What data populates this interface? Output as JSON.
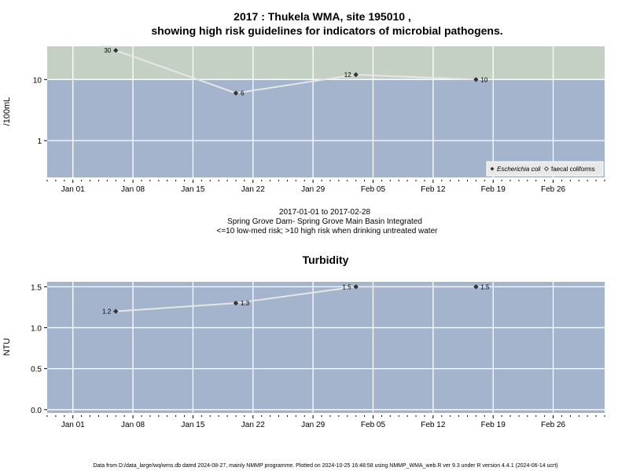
{
  "colors": {
    "plot_bg": "#a3b4cc",
    "high_risk_bg": "#c4d0c4",
    "grid": "#ffffff",
    "line": "#e6e6e6",
    "marker": "#333333"
  },
  "chart_data": [
    {
      "type": "line",
      "title_line1": "2017 : Thukela WMA, site 195010 ,",
      "title_line2": "showing high risk guidelines for indicators of microbial pathogens.",
      "ylabel": "/100mL",
      "yscale": "log",
      "ylim": [
        0.25,
        35
      ],
      "yticks": [
        {
          "value": 1,
          "label": "1"
        },
        {
          "value": 10,
          "label": "10"
        }
      ],
      "high_risk_threshold": 10,
      "xlim": [
        "2016-12-29",
        "2017-03-04"
      ],
      "xticks": [
        "Jan 01",
        "Jan 08",
        "Jan 15",
        "Jan 22",
        "Jan 29",
        "Feb 05",
        "Feb 12",
        "Feb 19",
        "Feb 26"
      ],
      "xtick_dates": [
        "2017-01-01",
        "2017-01-08",
        "2017-01-15",
        "2017-01-22",
        "2017-01-29",
        "2017-02-05",
        "2017-02-12",
        "2017-02-19",
        "2017-02-26"
      ],
      "series": [
        {
          "name": "Escherichia coli",
          "x": [
            "2017-01-06",
            "2017-01-20",
            "2017-02-03",
            "2017-02-17"
          ],
          "y": [
            30,
            6,
            12,
            10
          ],
          "labels": [
            "30",
            "6",
            "12",
            "10"
          ]
        }
      ],
      "legend": {
        "position": "bottom-right",
        "entries": [
          "Escherichia coli",
          "faecal coliforms"
        ]
      },
      "caption_lines": [
        "2017-01-01 to 2017-02-28",
        "Spring Grove Dam- Spring Grove Main Basin Integrated",
        "<=10 low-med risk; >10 high risk when drinking untreated water"
      ]
    },
    {
      "type": "line",
      "title": "Turbidity",
      "ylabel": "NTU",
      "ylim": [
        -0.04,
        1.56
      ],
      "yticks": [
        {
          "value": 0.0,
          "label": "0.0"
        },
        {
          "value": 0.5,
          "label": "0.5"
        },
        {
          "value": 1.0,
          "label": "1.0"
        },
        {
          "value": 1.5,
          "label": "1.5"
        }
      ],
      "xlim": [
        "2016-12-29",
        "2017-03-04"
      ],
      "xticks": [
        "Jan 01",
        "Jan 08",
        "Jan 15",
        "Jan 22",
        "Jan 29",
        "Feb 05",
        "Feb 12",
        "Feb 19",
        "Feb 26"
      ],
      "xtick_dates": [
        "2017-01-01",
        "2017-01-08",
        "2017-01-15",
        "2017-01-22",
        "2017-01-29",
        "2017-02-05",
        "2017-02-12",
        "2017-02-19",
        "2017-02-26"
      ],
      "series": [
        {
          "x": [
            "2017-01-06",
            "2017-01-20",
            "2017-02-03",
            "2017-02-17"
          ],
          "y": [
            1.2,
            1.3,
            1.5,
            1.5
          ],
          "labels": [
            "1.2",
            "1.3",
            "1.5",
            "1.5"
          ]
        }
      ]
    }
  ],
  "footer": "Data from D:/data_large/wq/wms.db dated 2024-08-27, mainly NMMP programme. Plotted on 2024-10-25 16:48:58 using NMMP_WMA_web.R ver 9.3 under R version 4.4.1 (2024-06-14 ucrt)"
}
